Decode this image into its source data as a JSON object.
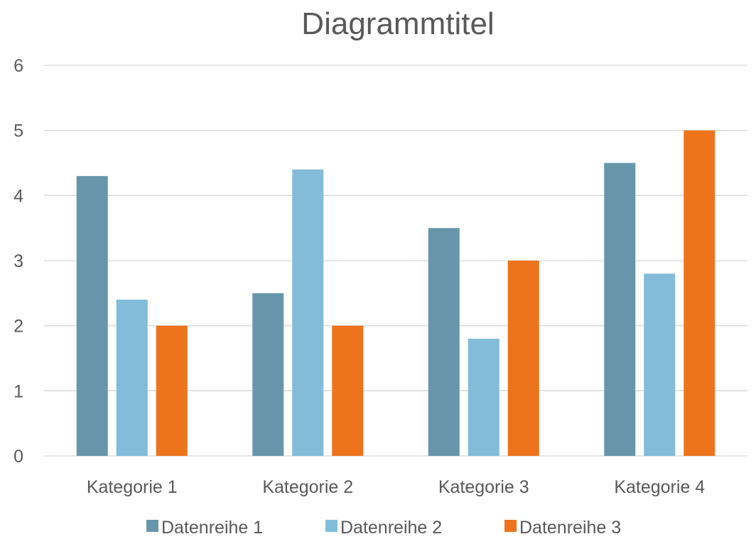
{
  "chart_data": {
    "type": "bar",
    "title": "Diagrammtitel",
    "xlabel": "",
    "ylabel": "",
    "categories": [
      "Kategorie 1",
      "Kategorie 2",
      "Kategorie 3",
      "Kategorie 4"
    ],
    "series": [
      {
        "name": "Datenreihe 1",
        "color": "#6796aa",
        "values": [
          4.3,
          2.5,
          3.5,
          4.5
        ]
      },
      {
        "name": "Datenreihe 2",
        "color": "#82bcd8",
        "values": [
          2.4,
          4.4,
          1.8,
          2.8
        ]
      },
      {
        "name": "Datenreihe 3",
        "color": "#ee741c",
        "values": [
          2,
          2,
          3,
          5
        ]
      }
    ],
    "ylim": [
      0,
      6
    ],
    "yticks": [
      "0",
      "1",
      "2",
      "3",
      "4",
      "5",
      "6"
    ],
    "grid": true,
    "legend_position": "bottom"
  }
}
